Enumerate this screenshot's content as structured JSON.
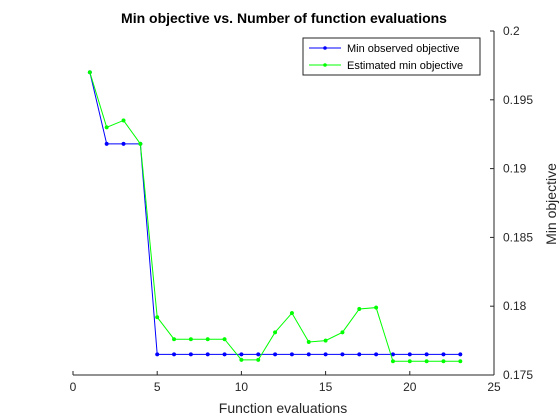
{
  "chart_data": {
    "type": "line",
    "title": "Min objective vs. Number of function evaluations",
    "xlabel": "Function evaluations",
    "ylabel": "Min objective",
    "xlim": [
      0,
      25
    ],
    "ylim": [
      0.175,
      0.2
    ],
    "xticks": [
      0,
      5,
      10,
      15,
      20,
      25
    ],
    "yticks": [
      0.175,
      0.18,
      0.185,
      0.19,
      0.195,
      0.2
    ],
    "ytick_labels": [
      "0.175",
      "0.18",
      "0.185",
      "0.19",
      "0.195",
      "0.2"
    ],
    "y_axis_position": "right",
    "grid": false,
    "legend_position": "top-right",
    "x": [
      1,
      2,
      3,
      4,
      5,
      6,
      7,
      8,
      9,
      10,
      11,
      12,
      13,
      14,
      15,
      16,
      17,
      18,
      19,
      20,
      21,
      22,
      23
    ],
    "series": [
      {
        "name": "Min observed objective",
        "color": "#0000ff",
        "values": [
          0.197,
          0.1918,
          0.1918,
          0.1918,
          0.1765,
          0.1765,
          0.1765,
          0.1765,
          0.1765,
          0.1765,
          0.1765,
          0.1765,
          0.1765,
          0.1765,
          0.1765,
          0.1765,
          0.1765,
          0.1765,
          0.1765,
          0.1765,
          0.1765,
          0.1765,
          0.1765
        ]
      },
      {
        "name": "Estimated min objective",
        "color": "#00ff00",
        "values": [
          0.197,
          0.193,
          0.1935,
          0.1918,
          0.1792,
          0.1776,
          0.1776,
          0.1776,
          0.1776,
          0.1761,
          0.1761,
          0.1781,
          0.1795,
          0.1774,
          0.1775,
          0.1781,
          0.1798,
          0.1799,
          0.176,
          0.176,
          0.176,
          0.176,
          0.176
        ]
      }
    ]
  }
}
